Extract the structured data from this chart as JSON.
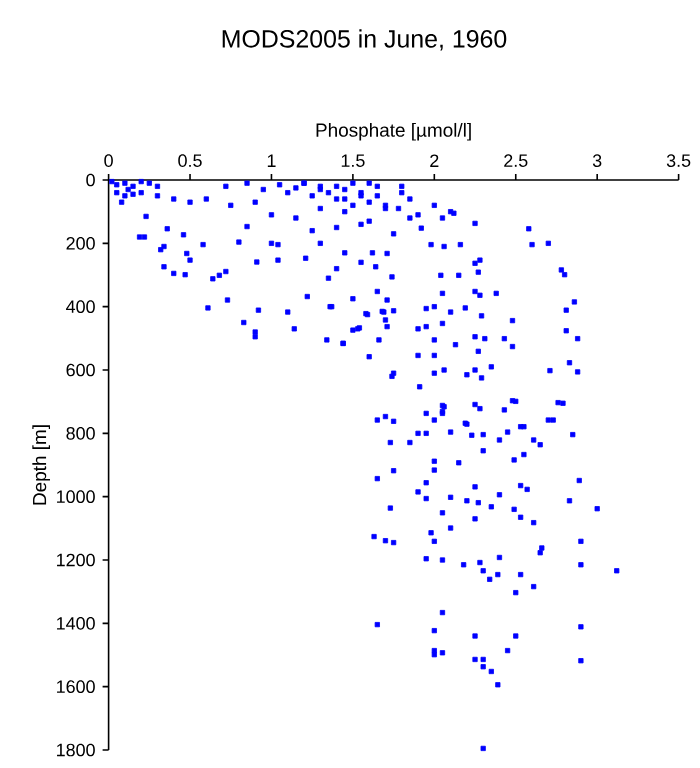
{
  "chart_data": {
    "type": "scatter",
    "title": "MODS2005 in June, 1960",
    "xlabel": "Phosphate [µmol/l]",
    "ylabel": "Depth [m]",
    "xlim": [
      0,
      3.5
    ],
    "xticks": [
      0,
      0.5,
      1,
      1.5,
      2,
      2.5,
      3,
      3.5
    ],
    "ylim": [
      1800,
      0
    ],
    "yticks": [
      0,
      200,
      400,
      600,
      800,
      1000,
      1200,
      1400,
      1600,
      1800
    ],
    "marker": "square",
    "series": [
      {
        "color": "#0000ff",
        "x": [
          0.02,
          0.05,
          0.1,
          0.15,
          0.2,
          0.25,
          0.05,
          0.1,
          0.15,
          0.2,
          0.08,
          0.12,
          0.3,
          0.3,
          0.23,
          0.19,
          0.22,
          0.36,
          0.34,
          0.32,
          0.46,
          0.48,
          0.58,
          0.5,
          0.34,
          0.4,
          0.47,
          0.64,
          0.68,
          0.72,
          0.8,
          0.85,
          0.73,
          0.61,
          0.91,
          0.92,
          0.83,
          0.9,
          0.9,
          1.04,
          1.0,
          1.04,
          1.1,
          1.14,
          1.21,
          1.22,
          1.36,
          1.34,
          1.44,
          1.4,
          1.35,
          1.6,
          1.75,
          1.74,
          1.5,
          1.54,
          1.58,
          1.68,
          1.7,
          1.71,
          1.65,
          1.74,
          1.64,
          1.71,
          0.72,
          0.85,
          0.95,
          1.05,
          1.1,
          1.15,
          1.2,
          1.25,
          1.3,
          1.35,
          1.4,
          1.45,
          1.5,
          1.55,
          1.6,
          1.65,
          1.7,
          1.8,
          0.75,
          0.9,
          0.6,
          0.5,
          0.4,
          1.3,
          1.0,
          1.15,
          1.45,
          1.55,
          1.75,
          1.85,
          1.2,
          1.3,
          1.4,
          1.45,
          1.5,
          1.55,
          1.6,
          1.65,
          1.7,
          1.8,
          1.85,
          1.9,
          2.0,
          2.05,
          2.1,
          1.92,
          1.78,
          1.6,
          1.4,
          1.25,
          1.3,
          1.45,
          1.55,
          1.62,
          2.12,
          2.25,
          2.58,
          2.6,
          2.7,
          2.16,
          2.06,
          1.98,
          2.28,
          2.25,
          2.78,
          2.8,
          2.04,
          2.15,
          2.27,
          2.05,
          2.25,
          2.28,
          2.38,
          1.37,
          1.5,
          1.59,
          1.69,
          1.75,
          1.95,
          2.0,
          2.1,
          2.19,
          2.29,
          2.48,
          2.81,
          2.86,
          1.53,
          1.71,
          1.9,
          1.95,
          2.05,
          1.44,
          1.66,
          2.0,
          2.13,
          2.25,
          2.31,
          2.43,
          2.48,
          2.81,
          2.88,
          1.9,
          2.0,
          2.27,
          1.91,
          2.0,
          2.06,
          2.2,
          2.25,
          2.29,
          2.35,
          2.71,
          2.88,
          2.83,
          2.48,
          2.76,
          2.06,
          2.25,
          2.28,
          2.43,
          1.95,
          2.0,
          2.19,
          2.53,
          2.7,
          1.65,
          1.7,
          1.75,
          2.05,
          2.05,
          2.05,
          2.5,
          2.73,
          2.79,
          1.73,
          1.85,
          1.9,
          1.95,
          2.1,
          2.2,
          2.23,
          2.3,
          2.4,
          2.45,
          2.55,
          2.61,
          2.65,
          2.85,
          2.3,
          2.0,
          2.15,
          2.0,
          2.49,
          2.55,
          1.75,
          1.65,
          1.95,
          2.25,
          2.4,
          2.53,
          2.57,
          2.89,
          1.9,
          1.95,
          2.1,
          2.2,
          2.27,
          2.35,
          2.49,
          2.53,
          2.61,
          2.83,
          3.0,
          1.73,
          2.05,
          2.25,
          2.1,
          1.63,
          1.7,
          1.75,
          1.98,
          2.0,
          2.9,
          2.66,
          2.65,
          2.4,
          2.28,
          2.18,
          1.95,
          2.05,
          2.3,
          2.34,
          2.39,
          2.53,
          2.61,
          2.5,
          2.9,
          3.12,
          2.05,
          1.65,
          2.0,
          2.25,
          2.5,
          2.9,
          2.0,
          2.0,
          2.05,
          2.25,
          2.3,
          2.3,
          2.45,
          2.35,
          2.39,
          2.9,
          2.3
        ],
        "values": [
          5,
          15,
          10,
          20,
          5,
          10,
          40,
          50,
          45,
          40,
          70,
          30,
          20,
          50,
          115,
          180,
          180,
          154,
          210,
          220,
          173,
          232,
          204,
          253,
          274,
          295,
          299,
          312,
          301,
          289,
          196,
          147,
          379,
          404,
          259,
          411,
          450,
          495,
          480,
          204,
          200,
          253,
          417,
          470,
          247,
          368,
          400,
          505,
          516,
          280,
          310,
          558,
          610,
          620,
          474,
          467,
          422,
          415,
          442,
          379,
          352,
          306,
          274,
          232,
          20,
          10,
          30,
          15,
          40,
          25,
          10,
          50,
          20,
          40,
          60,
          30,
          10,
          50,
          70,
          20,
          80,
          40,
          80,
          70,
          60,
          70,
          60,
          90,
          110,
          120,
          100,
          140,
          170,
          120,
          10,
          30,
          20,
          60,
          80,
          40,
          10,
          50,
          90,
          20,
          60,
          110,
          80,
          120,
          100,
          152,
          90,
          130,
          150,
          160,
          200,
          230,
          260,
          230,
          105,
          137,
          154,
          204,
          200,
          204,
          210,
          204,
          253,
          263,
          284,
          299,
          301,
          301,
          291,
          358,
          352,
          364,
          358,
          400,
          375,
          425,
          417,
          413,
          406,
          400,
          417,
          404,
          429,
          444,
          411,
          385,
          470,
          463,
          470,
          463,
          453,
          516,
          505,
          505,
          520,
          495,
          501,
          501,
          526,
          476,
          501,
          554,
          554,
          541,
          653,
          610,
          600,
          615,
          600,
          625,
          590,
          602,
          606,
          577,
          697,
          703,
          716,
          709,
          722,
          726,
          737,
          758,
          768,
          779,
          758,
          758,
          747,
          762,
          737,
          712,
          731,
          699,
          758,
          705,
          829,
          829,
          800,
          800,
          796,
          771,
          806,
          804,
          821,
          796,
          779,
          821,
          836,
          804,
          855,
          888,
          893,
          916,
          884,
          867,
          918,
          943,
          956,
          969,
          994,
          965,
          977,
          949,
          985,
          1006,
          1002,
          1013,
          1019,
          1032,
          1040,
          1065,
          1082,
          1013,
          1038,
          1036,
          1051,
          1070,
          1099,
          1126,
          1139,
          1145,
          1114,
          1141,
          1141,
          1162,
          1177,
          1192,
          1208,
          1215,
          1196,
          1200,
          1234,
          1261,
          1246,
          1246,
          1284,
          1303,
          1215,
          1234,
          1366,
          1404,
          1423,
          1440,
          1440,
          1411,
          1486,
          1499,
          1493,
          1514,
          1514,
          1537,
          1486,
          1552,
          1594,
          1518,
          1795
        ]
      }
    ]
  }
}
